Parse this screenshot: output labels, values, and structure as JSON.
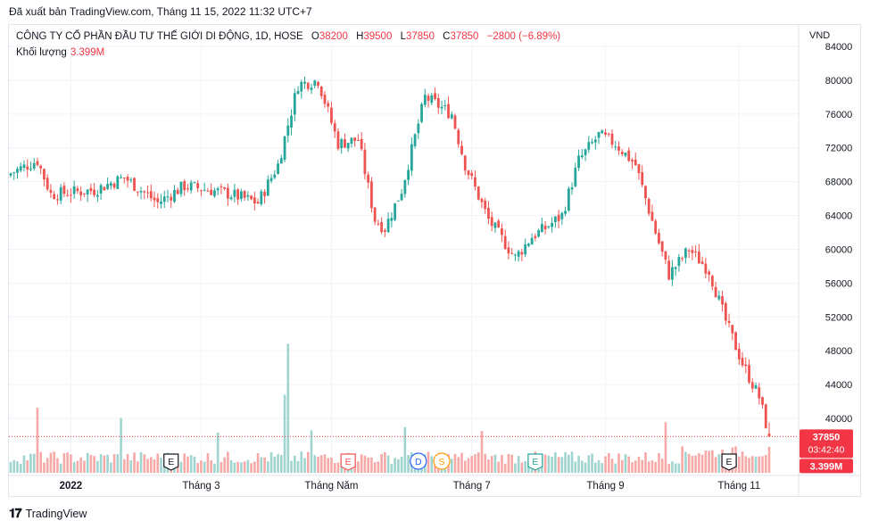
{
  "caption": "Đã xuất bản TradingView.com, Tháng 11 15, 2022 11:32 UTC+7",
  "legend": {
    "symbol": "CÔNG TY CỔ PHẦN ĐẦU TƯ THẾ GIỚI DI ĐỘNG, 1D, HOSE",
    "open_label": "O",
    "open": "38200",
    "high_label": "H",
    "high": "39500",
    "low_label": "L",
    "low": "37850",
    "close_label": "C",
    "close": "37850",
    "change": "−2800 (−6.89%)",
    "volume_label": "Khối lượng",
    "volume": "3.399M"
  },
  "currency": "VND",
  "footer": {
    "brand": "TradingView"
  },
  "colors": {
    "up": "#26a69a",
    "down": "#ef5350",
    "up_vol": "#9fd4cf",
    "down_vol": "#f7a9a7",
    "grid": "#f0f3fa",
    "last_price": "#f23645"
  },
  "chart_data": {
    "type": "candlestick",
    "y_axis": {
      "min": 40000,
      "max": 84000,
      "ticks": [
        40000,
        44000,
        48000,
        52000,
        56000,
        60000,
        64000,
        68000,
        72000,
        76000,
        80000,
        84000
      ]
    },
    "x_labels": [
      {
        "label": "2022",
        "index": 18
      },
      {
        "label": "Tháng 3",
        "index": 57
      },
      {
        "label": "Tháng Năm",
        "index": 96
      },
      {
        "label": "Tháng 7",
        "index": 138
      },
      {
        "label": "Tháng 9",
        "index": 178
      },
      {
        "label": "Tháng 11",
        "index": 218
      }
    ],
    "last_price": {
      "value": 37850,
      "label": "37850",
      "countdown": "03:42:40",
      "volume_label": "3.399M"
    },
    "event_markers": [
      {
        "text": "E",
        "type": "earnings",
        "index": 48,
        "color": "#131722"
      },
      {
        "text": "E",
        "type": "earnings",
        "index": 101,
        "color": "#ef5350"
      },
      {
        "text": "D",
        "type": "dividend",
        "index": 122,
        "color": "#2962ff"
      },
      {
        "text": "S",
        "type": "split",
        "index": 129,
        "color": "#ff9800"
      },
      {
        "text": "E",
        "type": "earnings",
        "index": 157,
        "color": "#26a69a"
      },
      {
        "text": "E",
        "type": "earnings",
        "index": 215,
        "color": "#131722"
      }
    ],
    "waypoints": [
      [
        0,
        69000
      ],
      [
        8,
        70500
      ],
      [
        12,
        66500
      ],
      [
        25,
        67000
      ],
      [
        34,
        68500
      ],
      [
        44,
        65500
      ],
      [
        52,
        67500
      ],
      [
        60,
        67000
      ],
      [
        66,
        66500
      ],
      [
        74,
        65500
      ],
      [
        80,
        70000
      ],
      [
        86,
        79500
      ],
      [
        92,
        80000
      ],
      [
        98,
        72500
      ],
      [
        104,
        73000
      ],
      [
        109,
        63500
      ],
      [
        112,
        62500
      ],
      [
        117,
        67000
      ],
      [
        124,
        78000
      ],
      [
        132,
        76000
      ],
      [
        136,
        70000
      ],
      [
        143,
        63500
      ],
      [
        151,
        59000
      ],
      [
        156,
        61500
      ],
      [
        160,
        62500
      ],
      [
        165,
        64000
      ],
      [
        170,
        70500
      ],
      [
        176,
        73500
      ],
      [
        181,
        72500
      ],
      [
        187,
        70000
      ],
      [
        193,
        62000
      ],
      [
        197,
        57000
      ],
      [
        203,
        60000
      ],
      [
        209,
        57500
      ],
      [
        214,
        51500
      ],
      [
        219,
        46500
      ],
      [
        224,
        42500
      ],
      [
        227,
        37850
      ]
    ]
  }
}
